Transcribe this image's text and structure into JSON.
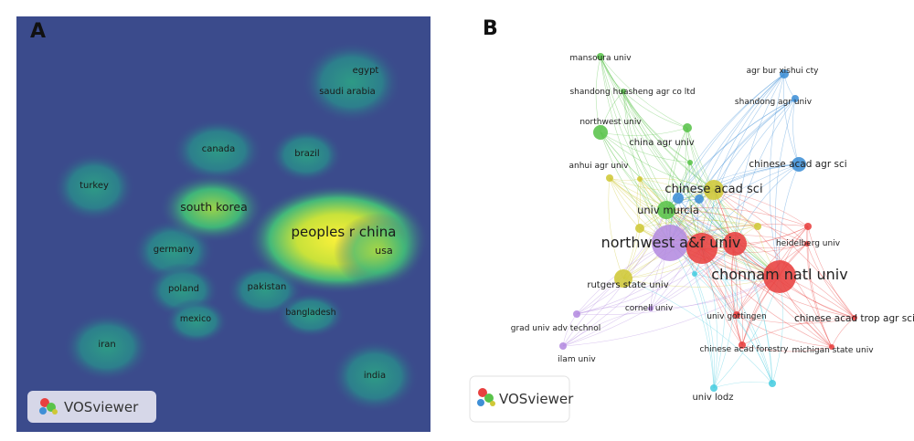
{
  "panel_a": {
    "label": "A",
    "badge": "VOSviewer",
    "colors": {
      "background": "#3b4b8c",
      "ring": "#2a8c8a",
      "mid": "#3fb57a",
      "hot": "#f4ee2a"
    },
    "countries": [
      "egypt",
      "saudi arabia",
      "canada",
      "brazil",
      "turkey",
      "south korea",
      "peoples r china",
      "usa",
      "germany",
      "poland",
      "pakistan",
      "mexico",
      "bangladesh",
      "iran",
      "india"
    ]
  },
  "panel_b": {
    "label": "B",
    "badge": "VOSviewer",
    "cluster_colors": {
      "red": "#e8403f",
      "green": "#59c34a",
      "blue": "#3f8fd6",
      "yellow": "#cfc837",
      "purple": "#b48be0",
      "cyan": "#49cde0"
    },
    "institutions": [
      "mansoura univ",
      "agr bur xishui cty",
      "shandong huasheng agr co ltd",
      "shandong agr univ",
      "northwest univ",
      "china agr univ",
      "chinese acad agr sci",
      "anhui agr univ",
      "chinese acad sci",
      "univ murcia",
      "northwest a&f univ",
      "heidelberg univ",
      "chonnam natl univ",
      "rutgers state univ",
      "cornell univ",
      "univ gottingen",
      "chinese acad trop agr sci",
      "grad univ adv technol",
      "chinese acad forestry",
      "michigan state univ",
      "ilam univ",
      "univ lodz"
    ]
  }
}
